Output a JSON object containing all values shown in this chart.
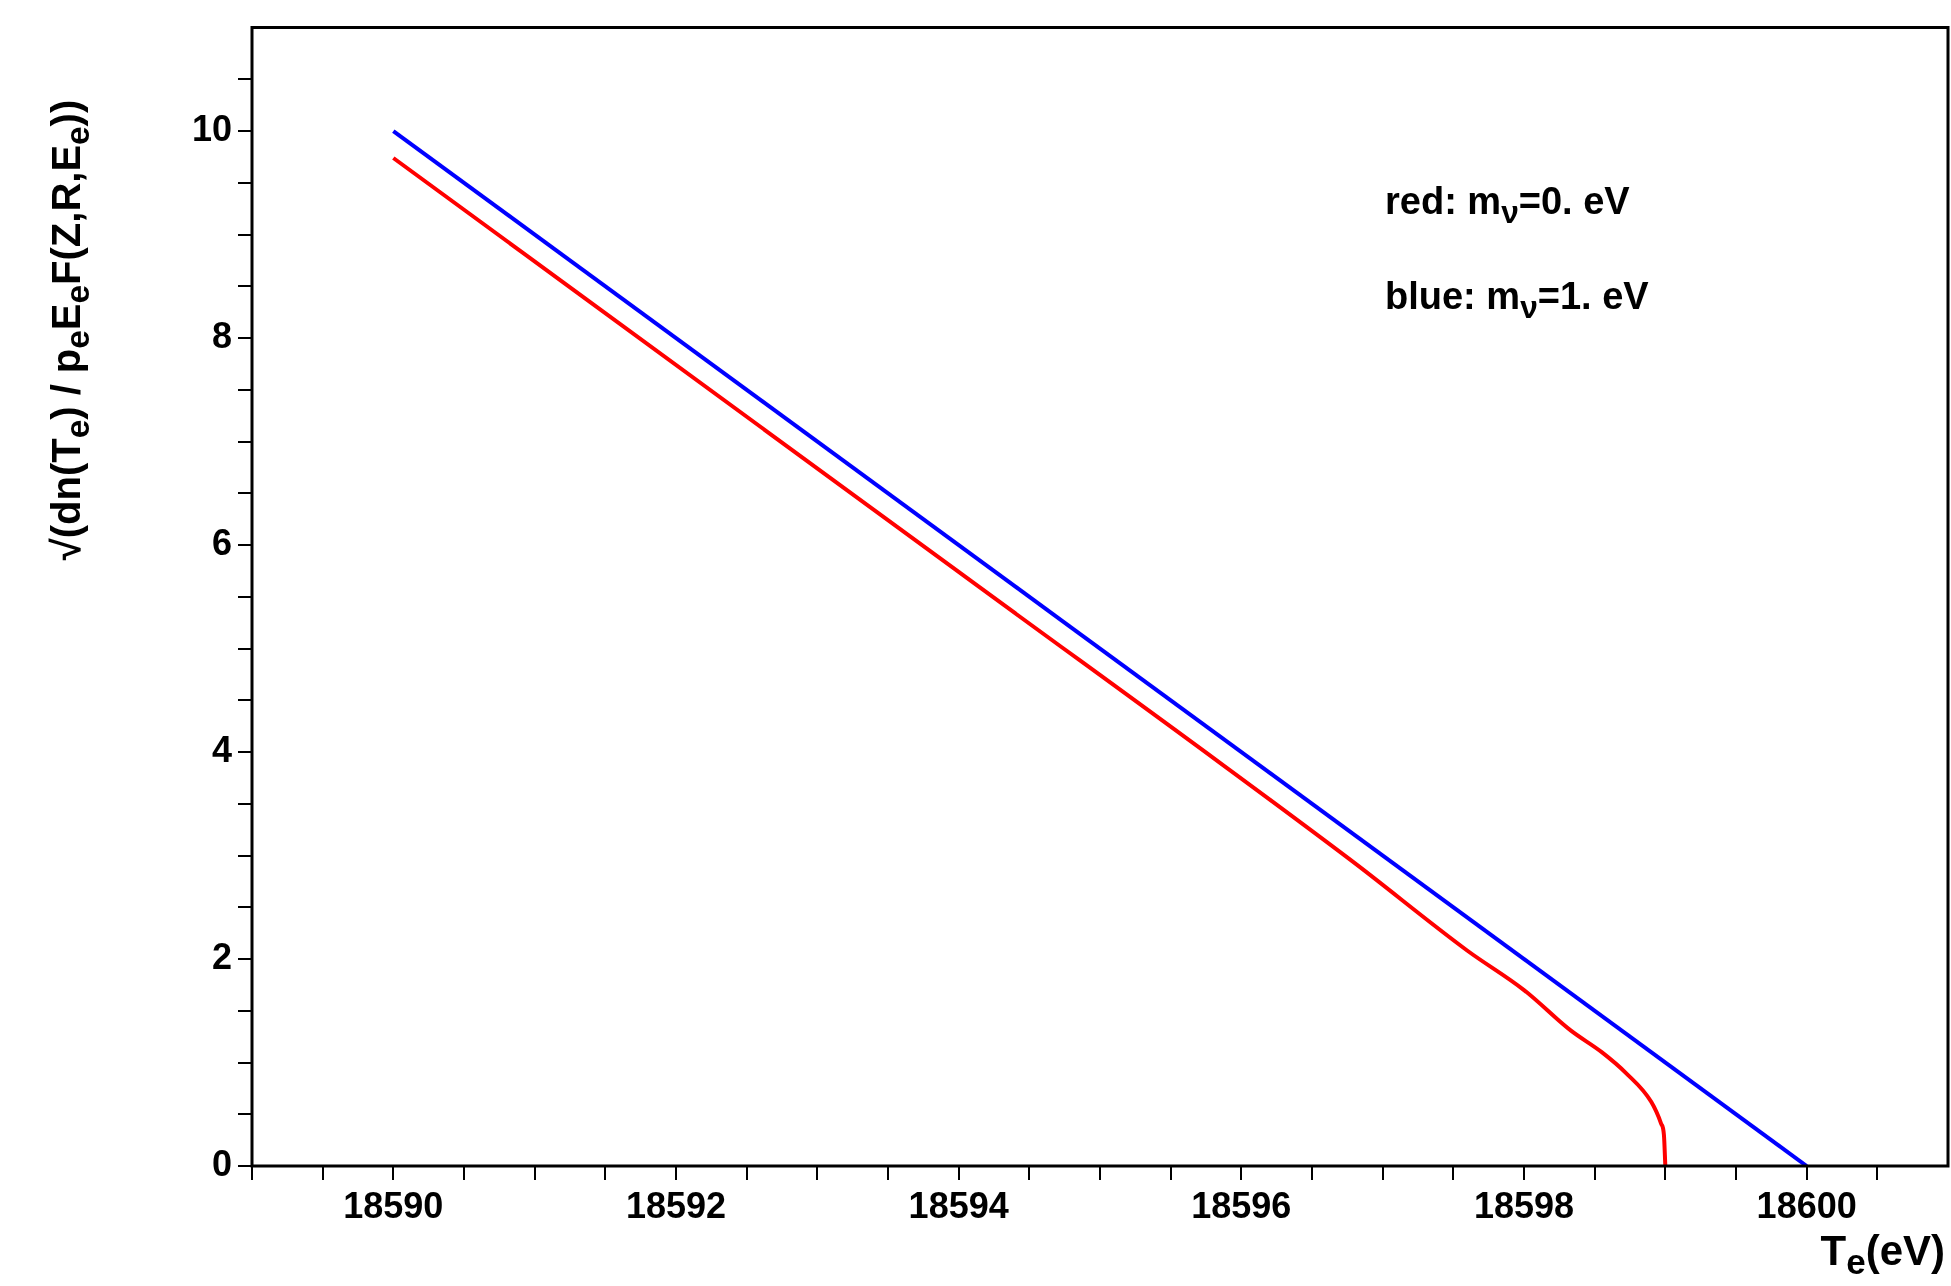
{
  "chart_data": {
    "type": "line",
    "xlabel": "T$_{e}$(eV)",
    "ylabel": "√(dn(T$_{e}$) / p$_{e}$E$_{e}$F(Z,R,E$_{e}$))",
    "annotations": [
      "red: m$_{ν}$=0. eV",
      "blue: m$_{ν}$=1. eV"
    ],
    "xlim": [
      18589,
      18601
    ],
    "xticks": [
      {
        "value": 18589,
        "label": null
      },
      {
        "value": 18589.5,
        "label": null
      },
      18590,
      {
        "value": 18590.5,
        "label": null
      },
      {
        "value": 18591,
        "label": null
      },
      {
        "value": 18591.5,
        "label": null
      },
      18592,
      {
        "value": 18592.5,
        "label": null
      },
      {
        "value": 18593,
        "label": null
      },
      {
        "value": 18593.5,
        "label": null
      },
      18594,
      {
        "value": 18594.5,
        "label": null
      },
      {
        "value": 18595,
        "label": null
      },
      {
        "value": 18595.5,
        "label": null
      },
      18596,
      {
        "value": 18596.5,
        "label": null
      },
      {
        "value": 18597,
        "label": null
      },
      {
        "value": 18597.5,
        "label": null
      },
      18598,
      {
        "value": 18598.5,
        "label": null
      },
      {
        "value": 18599,
        "label": null
      },
      {
        "value": 18599.5,
        "label": null
      },
      18600,
      {
        "value": 18600.5,
        "label": null
      }
    ],
    "ylim": [
      0,
      11
    ],
    "yticks": [
      0,
      {
        "value": 0.5,
        "label": null
      },
      {
        "value": 1,
        "label": null
      },
      {
        "value": 1.5,
        "label": null
      },
      2,
      {
        "value": 2.5,
        "label": null
      },
      {
        "value": 3,
        "label": null
      },
      {
        "value": 3.5,
        "label": null
      },
      4,
      {
        "value": 4.5,
        "label": null
      },
      {
        "value": 5,
        "label": null
      },
      {
        "value": 5.5,
        "label": null
      },
      6,
      {
        "value": 6.5,
        "label": null
      },
      {
        "value": 7,
        "label": null
      },
      {
        "value": 7.5,
        "label": null
      },
      8,
      {
        "value": 8.5,
        "label": null
      },
      {
        "value": 9,
        "label": null
      },
      {
        "value": 9.5,
        "label": null
      },
      10,
      {
        "value": 10.5,
        "label": null
      }
    ],
    "grid": false,
    "legend": false,
    "marker": "none",
    "line_style": "solid",
    "series": [
      {
        "color": "#0000ff",
        "x": [
          18590,
          18600
        ],
        "values": [
          10,
          0
        ]
      },
      {
        "color": "#ff0000",
        "x": [
          18590,
          18594,
          18596.77,
          18597.6,
          18598,
          18598.33,
          18598.55,
          18598.72,
          18598.9,
          18598.97,
          18598.99,
          18599
        ],
        "values": [
          9.74,
          5.74,
          2.96,
          2.08,
          1.7,
          1.31,
          1.1,
          0.9,
          0.62,
          0.41,
          0.3,
          0
        ]
      }
    ]
  }
}
